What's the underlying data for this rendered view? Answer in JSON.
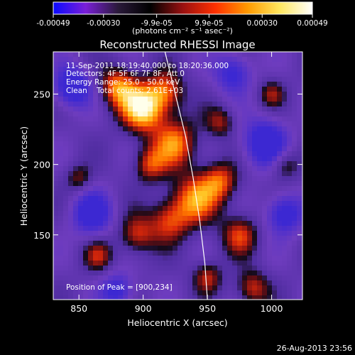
{
  "colorbar": {
    "tick_labels": [
      "-0.00049",
      "-0.00030",
      "-9.9e-05",
      "9.9e-05",
      "0.00030",
      "0.00049"
    ],
    "tick_values": [
      -0.00049,
      -0.0003,
      -9.9e-05,
      9.9e-05,
      0.0003,
      0.00049
    ],
    "range": [
      -0.00049,
      0.00049
    ],
    "units_label": "(photons cm⁻² s⁻¹ asec⁻²)",
    "colors": [
      "#0a0aff",
      "#7a1fd8",
      "#2a1a3a",
      "#000000",
      "#9a1010",
      "#ff3000",
      "#ff9a00",
      "#ffe860",
      "#ffffff"
    ]
  },
  "chart_data": {
    "type": "heatmap",
    "title": "Reconstructed RHESSI Image",
    "xlabel": "Heliocentric X (arcsec)",
    "ylabel": "Heliocentric Y (arcsec)",
    "xlim": [
      830,
      1024
    ],
    "ylim": [
      104,
      280
    ],
    "x_ticks": [
      850,
      900,
      950,
      1000
    ],
    "y_ticks": [
      150,
      200,
      250
    ],
    "annotations": [
      "11-Sep-2011 18:19:40.000 to 18:20:36.000",
      "Detectors: 4F 5F 6F 7F 8F, Att 0",
      "Energy Range: 25.0 - 50.0 keV",
      "Clean    Total counts: 2.61E+03"
    ],
    "peak_label": "Position of Peak = [900,234]",
    "peak": [
      900,
      234
    ],
    "limb_curve": [
      [
        917,
        280
      ],
      [
        925,
        250
      ],
      [
        933,
        220
      ],
      [
        939,
        190
      ],
      [
        944,
        160
      ],
      [
        948,
        130
      ],
      [
        950,
        104
      ]
    ],
    "sources": [
      {
        "x": 900,
        "y": 240,
        "s": 12,
        "a": 1.0
      },
      {
        "x": 880,
        "y": 255,
        "s": 10,
        "a": 0.7
      },
      {
        "x": 918,
        "y": 252,
        "s": 10,
        "a": 0.6
      },
      {
        "x": 925,
        "y": 215,
        "s": 12,
        "a": 0.7
      },
      {
        "x": 905,
        "y": 200,
        "s": 9,
        "a": 0.55
      },
      {
        "x": 940,
        "y": 175,
        "s": 13,
        "a": 0.7
      },
      {
        "x": 960,
        "y": 188,
        "s": 10,
        "a": 0.6
      },
      {
        "x": 920,
        "y": 160,
        "s": 11,
        "a": 0.55
      },
      {
        "x": 895,
        "y": 150,
        "s": 10,
        "a": 0.55
      },
      {
        "x": 975,
        "y": 150,
        "s": 10,
        "a": 0.55
      },
      {
        "x": 950,
        "y": 120,
        "s": 8,
        "a": 0.5
      },
      {
        "x": 985,
        "y": 112,
        "s": 9,
        "a": 0.55
      },
      {
        "x": 865,
        "y": 135,
        "s": 8,
        "a": 0.45
      },
      {
        "x": 1010,
        "y": 200,
        "s": 8,
        "a": 0.45
      },
      {
        "x": 1000,
        "y": 250,
        "s": 7,
        "a": 0.4
      },
      {
        "x": 850,
        "y": 190,
        "s": 7,
        "a": 0.4
      },
      {
        "x": 960,
        "y": 230,
        "s": 8,
        "a": 0.45
      }
    ],
    "negative_sources": [
      {
        "x": 845,
        "y": 255,
        "s": 10,
        "a": -0.8
      },
      {
        "x": 995,
        "y": 215,
        "s": 12,
        "a": -0.8
      },
      {
        "x": 1010,
        "y": 165,
        "s": 10,
        "a": -0.7
      },
      {
        "x": 860,
        "y": 165,
        "s": 11,
        "a": -0.7
      },
      {
        "x": 970,
        "y": 265,
        "s": 10,
        "a": -0.6
      },
      {
        "x": 880,
        "y": 110,
        "s": 9,
        "a": -0.6
      }
    ]
  },
  "footer": {
    "timestamp": "26-Aug-2013 23:56"
  }
}
